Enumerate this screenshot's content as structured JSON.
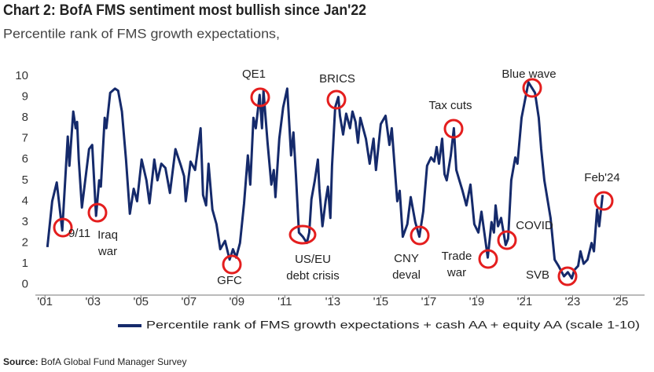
{
  "chart_data": {
    "type": "line",
    "title": "Chart 2: BofA FMS sentiment most bullish since Jan'22",
    "subtitle": "Percentile rank of FMS growth expectations,",
    "source": {
      "label": "Source:",
      "text": "BofA Global Fund Manager Survey"
    },
    "series": [
      {
        "name": "Percentile rank of FMS growth expectations + cash AA + equity AA (scale 1-10)",
        "color": "#152a6b",
        "x": [
          2001.1,
          2001.3,
          2001.49,
          2001.72,
          2001.95,
          2002.02,
          2002.18,
          2002.28,
          2002.34,
          2002.41,
          2002.54,
          2002.84,
          2002.97,
          2003.13,
          2003.26,
          2003.33,
          2003.49,
          2003.56,
          2003.72,
          2003.92,
          2004.05,
          2004.21,
          2004.38,
          2004.54,
          2004.7,
          2004.84,
          2005.03,
          2005.23,
          2005.36,
          2005.56,
          2005.69,
          2005.85,
          2006.02,
          2006.21,
          2006.44,
          2006.67,
          2006.8,
          2006.87,
          2007.07,
          2007.26,
          2007.49,
          2007.59,
          2007.72,
          2007.82,
          2007.98,
          2008.15,
          2008.31,
          2008.51,
          2008.7,
          2008.84,
          2008.97,
          2009.13,
          2009.3,
          2009.46,
          2009.56,
          2009.69,
          2009.79,
          2009.95,
          2010.05,
          2010.11,
          2010.28,
          2010.44,
          2010.54,
          2010.61,
          2010.77,
          2010.93,
          2011.1,
          2011.26,
          2011.36,
          2011.46,
          2011.59,
          2011.75,
          2011.92,
          2012.02,
          2012.11,
          2012.25,
          2012.38,
          2012.44,
          2012.57,
          2012.7,
          2012.8,
          2012.9,
          2012.97,
          2013.1,
          2013.23,
          2013.3,
          2013.43,
          2013.56,
          2013.72,
          2013.82,
          2013.95,
          2014.05,
          2014.15,
          2014.38,
          2014.54,
          2014.7,
          2014.8,
          2015.0,
          2015.2,
          2015.36,
          2015.46,
          2015.69,
          2015.79,
          2015.92,
          2016.11,
          2016.25,
          2016.44,
          2016.61,
          2016.77,
          2016.93,
          2017.1,
          2017.23,
          2017.33,
          2017.43,
          2017.56,
          2017.66,
          2017.75,
          2017.92,
          2018.05,
          2018.15,
          2018.28,
          2018.41,
          2018.57,
          2018.74,
          2018.9,
          2019.07,
          2019.2,
          2019.46,
          2019.62,
          2019.72,
          2019.79,
          2019.89,
          2020.02,
          2020.21,
          2020.31,
          2020.44,
          2020.61,
          2020.7,
          2020.87,
          2021.16,
          2021.43,
          2021.59,
          2021.69,
          2021.82,
          2022.08,
          2022.25,
          2022.41,
          2022.64,
          2022.8,
          2022.97,
          2023.07,
          2023.23,
          2023.33,
          2023.46,
          2023.62,
          2023.79,
          2023.89,
          2024.02,
          2024.11,
          2024.25
        ],
        "values": [
          1.8,
          4.0,
          4.9,
          2.6,
          7.1,
          5.7,
          8.3,
          7.5,
          7.8,
          6.0,
          3.7,
          6.5,
          6.7,
          3.3,
          5.0,
          4.7,
          8.0,
          7.5,
          9.2,
          9.4,
          9.3,
          8.3,
          6.0,
          3.4,
          4.6,
          4.0,
          6.0,
          5.0,
          3.9,
          6.0,
          5.0,
          5.8,
          5.6,
          4.4,
          6.5,
          5.7,
          5.2,
          4.0,
          5.9,
          5.5,
          7.5,
          4.3,
          3.8,
          5.8,
          3.6,
          2.9,
          1.7,
          2.1,
          1.2,
          1.7,
          1.3,
          2.0,
          3.9,
          6.2,
          4.8,
          8.0,
          7.5,
          9.1,
          7.5,
          9.3,
          6.8,
          4.8,
          5.5,
          4.2,
          7.0,
          8.5,
          9.4,
          6.2,
          7.3,
          5.3,
          2.5,
          2.3,
          2.0,
          2.5,
          4.1,
          5.0,
          6.0,
          4.6,
          2.8,
          4.0,
          4.7,
          3.2,
          5.7,
          8.5,
          9.0,
          8.1,
          7.2,
          8.2,
          7.5,
          8.3,
          7.8,
          6.8,
          8.0,
          7.0,
          5.8,
          7.0,
          5.5,
          7.7,
          8.1,
          6.7,
          7.5,
          4.0,
          4.5,
          2.3,
          2.9,
          4.2,
          3.0,
          2.3,
          3.5,
          5.7,
          6.1,
          5.9,
          6.6,
          5.8,
          7.0,
          5.3,
          5.0,
          6.2,
          7.5,
          5.5,
          5.0,
          4.5,
          3.8,
          4.8,
          2.9,
          2.5,
          3.5,
          1.3,
          3.0,
          2.5,
          3.8,
          2.8,
          3.2,
          1.9,
          2.2,
          5.0,
          6.1,
          5.8,
          8.0,
          9.7,
          9.2,
          8.0,
          6.5,
          5.0,
          3.2,
          1.2,
          0.9,
          0.4,
          0.6,
          0.3,
          0.7,
          0.9,
          1.6,
          1.0,
          1.2,
          2.0,
          1.6,
          3.6,
          2.8,
          4.3
        ]
      }
    ],
    "xlim": [
      2000.6,
      2026
    ],
    "xticks": [
      {
        "value": 2001,
        "label": "'01"
      },
      {
        "value": 2003,
        "label": "'03"
      },
      {
        "value": 2005,
        "label": "'05"
      },
      {
        "value": 2007,
        "label": "'07"
      },
      {
        "value": 2009,
        "label": "'09"
      },
      {
        "value": 2011,
        "label": "'11"
      },
      {
        "value": 2013,
        "label": "'13"
      },
      {
        "value": 2015,
        "label": "'15"
      },
      {
        "value": 2017,
        "label": "'17"
      },
      {
        "value": 2019,
        "label": "'19"
      },
      {
        "value": 2021,
        "label": "'21"
      },
      {
        "value": 2023,
        "label": "'23"
      },
      {
        "value": 2025,
        "label": "'25"
      }
    ],
    "ylim": [
      -0.5,
      10.3
    ],
    "yticks": [
      0,
      1,
      2,
      3,
      4,
      5,
      6,
      7,
      8,
      9,
      10
    ],
    "grid": false,
    "annotation_color": "#e41e1e",
    "annotations": [
      [
        "9/11"
      ],
      [
        "Iraq",
        "war"
      ],
      [
        "QE1"
      ],
      [
        "GFC"
      ],
      [
        "US/EU",
        "debt crisis"
      ],
      [
        "BRICS"
      ],
      [
        "CNY",
        "deval"
      ],
      [
        "Tax cuts"
      ],
      [
        "Trade",
        "war"
      ],
      [
        "COVID"
      ],
      [
        "Blue wave"
      ],
      [
        "SVB"
      ],
      [
        "Feb'24"
      ]
    ]
  }
}
